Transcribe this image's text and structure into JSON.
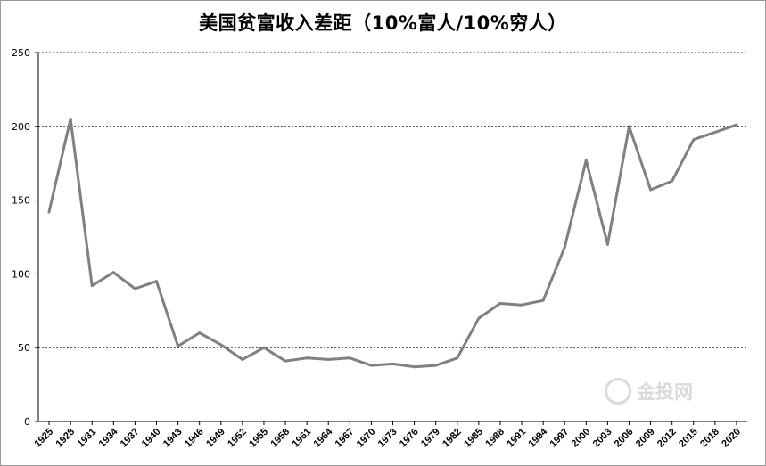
{
  "chart_data": {
    "type": "line",
    "title": "美国贫富收入差距（10%富人/10%穷人）",
    "xlabel": "",
    "ylabel": "",
    "ylim": [
      0,
      250
    ],
    "yticks": [
      0,
      50,
      100,
      150,
      200,
      250
    ],
    "grid": "horizontal-dashed",
    "legend": "none",
    "series_color": "#808080",
    "categories": [
      "1925",
      "1928",
      "1931",
      "1934",
      "1937",
      "1940",
      "1943",
      "1946",
      "1949",
      "1952",
      "1955",
      "1958",
      "1961",
      "1964",
      "1967",
      "1970",
      "1973",
      "1976",
      "1979",
      "1982",
      "1985",
      "1988",
      "1991",
      "1994",
      "1997",
      "2000",
      "2003",
      "2006",
      "2009",
      "2012",
      "2015",
      "2018",
      "2020"
    ],
    "series": [
      {
        "values": [
          142,
          205,
          92,
          101,
          90,
          95,
          51,
          60,
          52,
          42,
          50,
          41,
          43,
          42,
          43,
          38,
          39,
          37,
          38,
          43,
          70,
          80,
          79,
          82,
          118,
          177,
          120,
          200,
          157,
          163,
          191,
          196,
          201
        ]
      }
    ]
  },
  "watermark": {
    "text": "金投网",
    "icon": "jintou-logo-icon"
  }
}
